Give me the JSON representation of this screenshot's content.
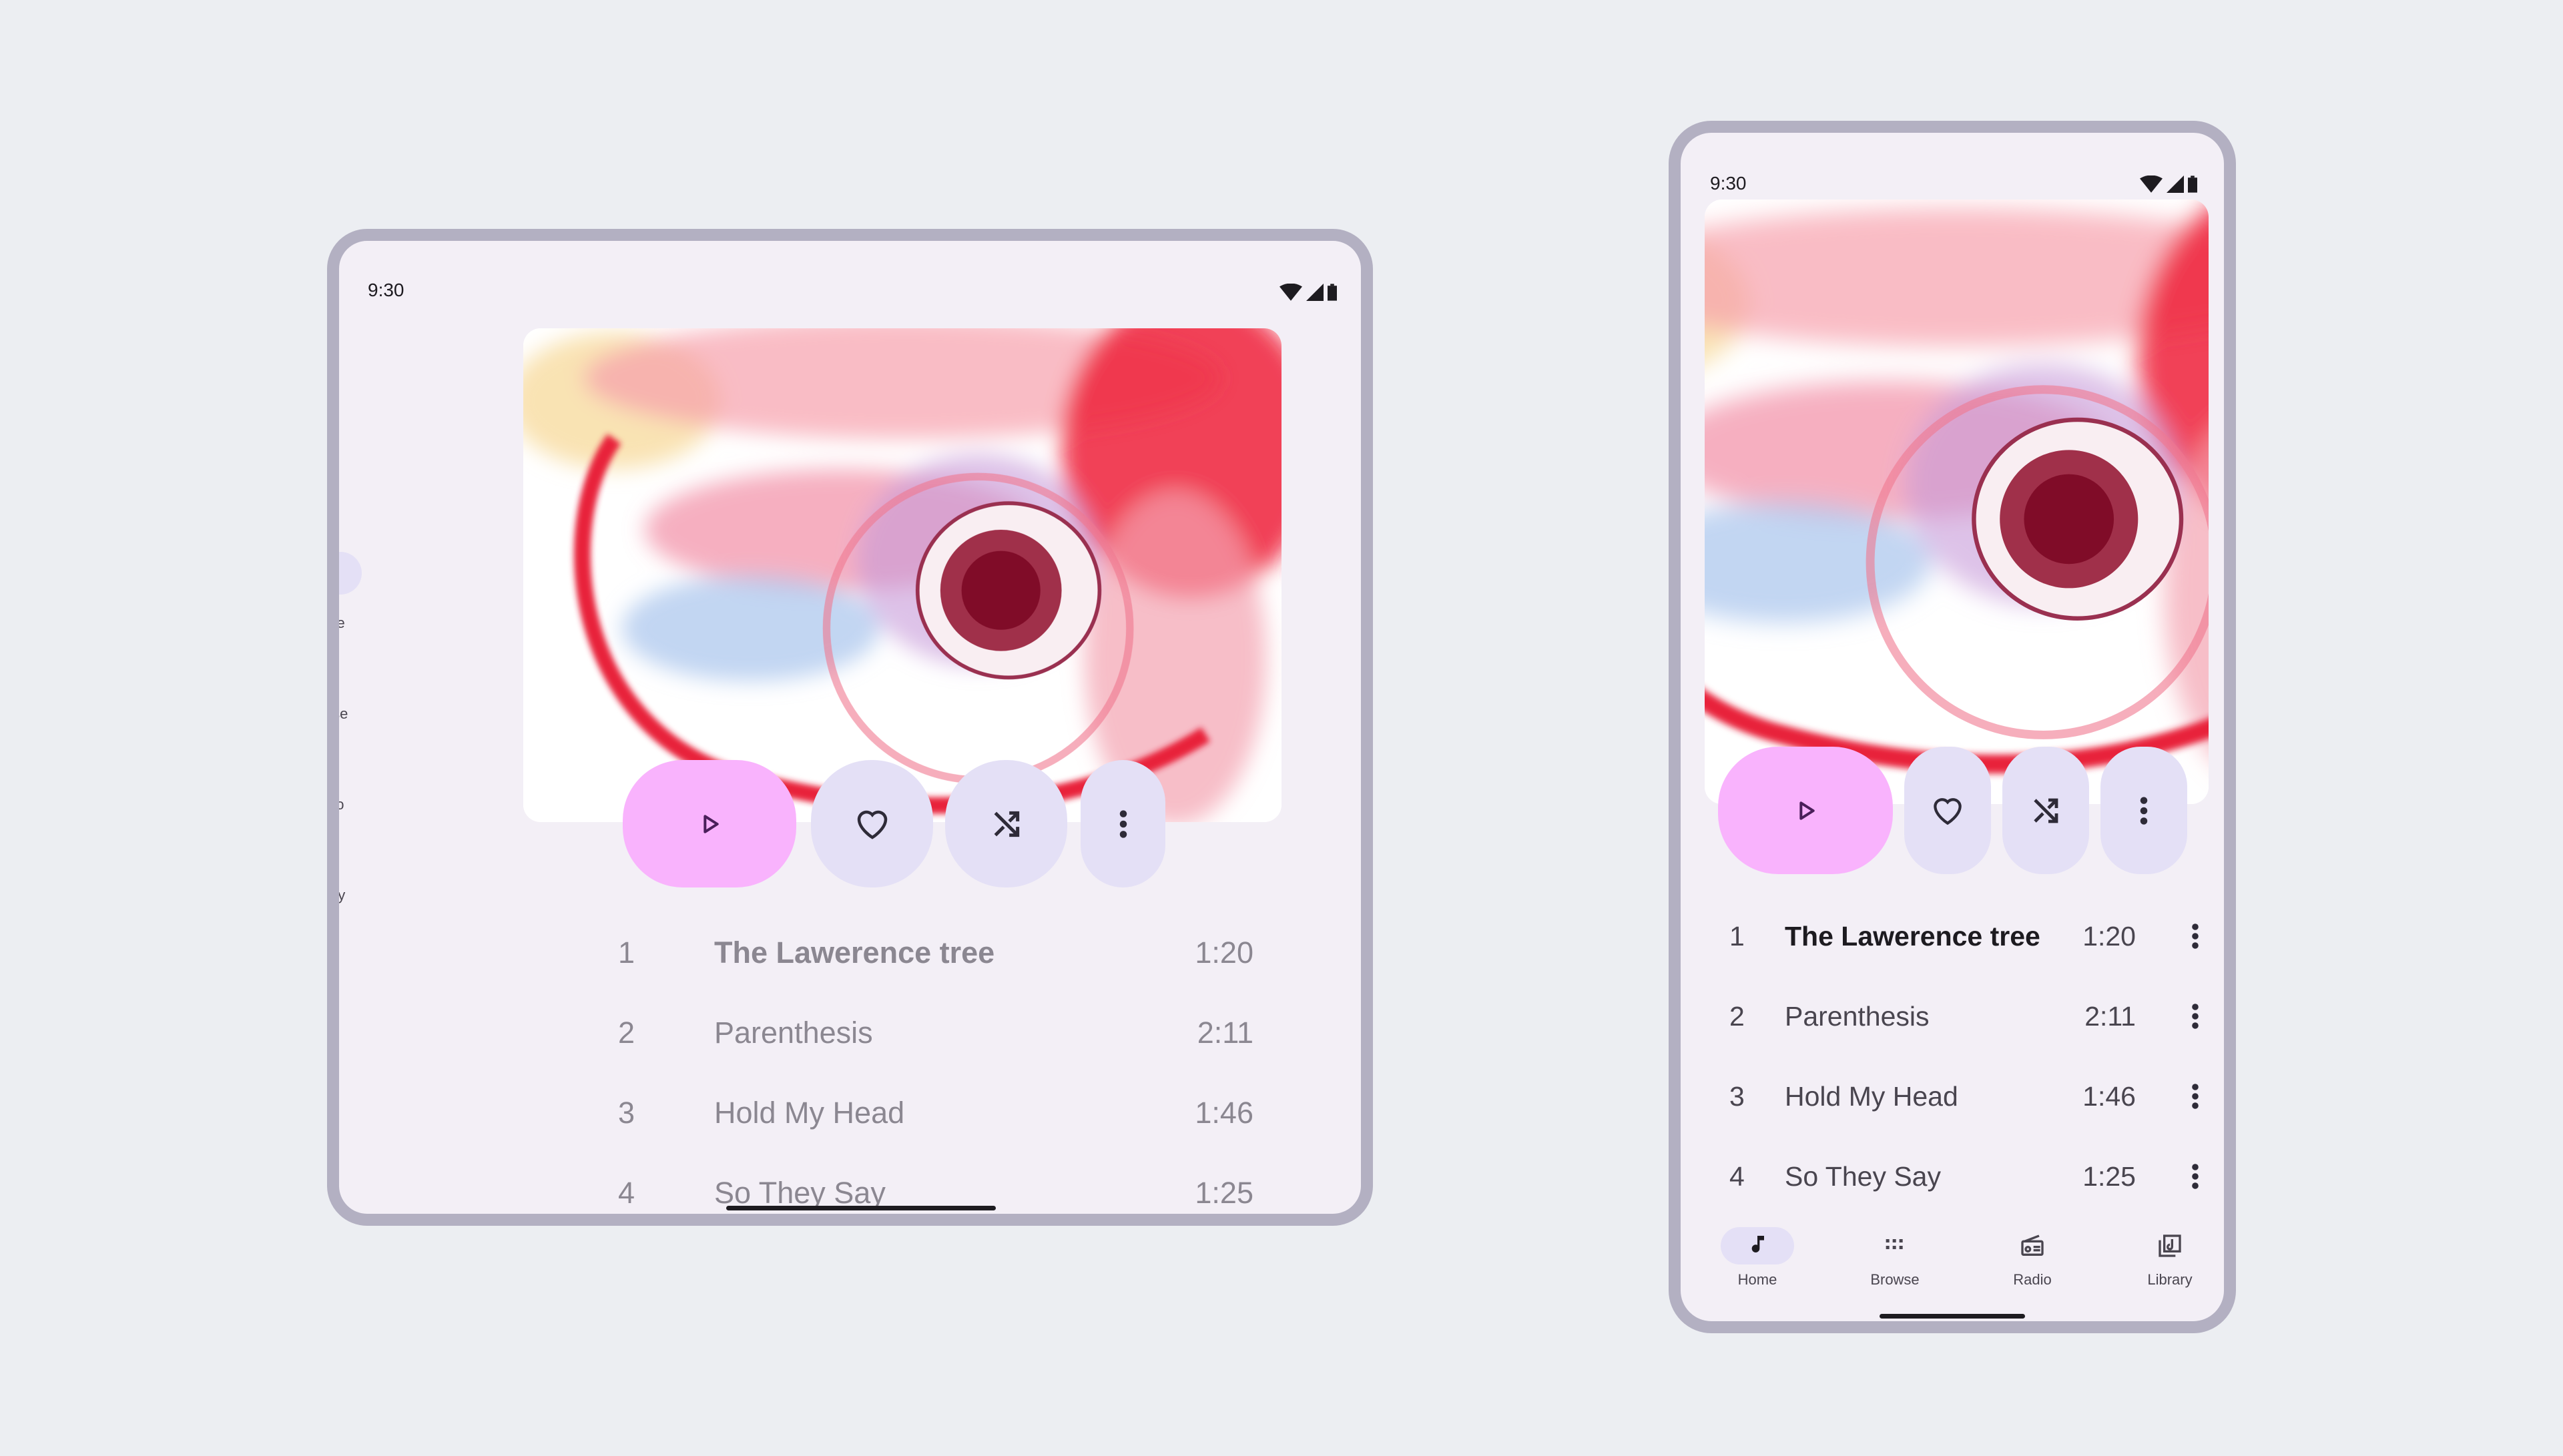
{
  "status_bar": {
    "time": "9:30",
    "icons": [
      "wifi-icon",
      "signal-icon",
      "battery-icon"
    ]
  },
  "colors": {
    "background": "#eceef2",
    "screen": "#f3eff6",
    "frame": "#b3b0c2",
    "play_button": "#f9b3fd",
    "secondary_button": "#e4e0f6"
  },
  "controls": {
    "play": "play-icon",
    "favorite": "heart-icon",
    "shuffle": "shuffle-icon",
    "more": "more-vert-icon"
  },
  "tracks": [
    {
      "number": "1",
      "title": "The Lawerence tree",
      "duration": "1:20"
    },
    {
      "number": "2",
      "title": "Parenthesis",
      "duration": "2:11"
    },
    {
      "number": "3",
      "title": "Hold My Head",
      "duration": "1:46"
    },
    {
      "number": "4",
      "title": "So They Say",
      "duration": "1:25"
    }
  ],
  "nav": [
    {
      "label": "Home",
      "icon": "music-note-icon",
      "active": true
    },
    {
      "label": "Browse",
      "icon": "grid-icon"
    },
    {
      "label": "Radio",
      "icon": "radio-icon"
    },
    {
      "label": "Library",
      "icon": "library-music-icon"
    }
  ]
}
